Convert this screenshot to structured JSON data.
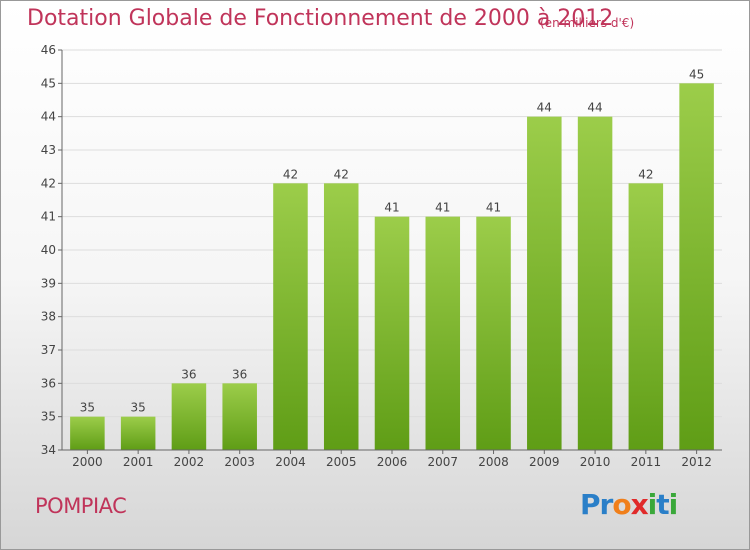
{
  "header": {
    "title": "Dotation Globale de Fonctionnement de 2000 à 2012",
    "unit": "(en milliers d'€)"
  },
  "footer": {
    "city": "POMPIAC",
    "brand_letters": [
      {
        "ch": "P",
        "color": "#2a7fc8"
      },
      {
        "ch": "r",
        "color": "#2a7fc8"
      },
      {
        "ch": "o",
        "color": "#f07f1a"
      },
      {
        "ch": "x",
        "color": "#e02a2a"
      },
      {
        "ch": "i",
        "color": "#3aa83a"
      },
      {
        "ch": "t",
        "color": "#2a7fc8"
      },
      {
        "ch": "i",
        "color": "#3aa83a"
      }
    ]
  },
  "colors": {
    "title": "#c0345a",
    "bar_top": "#9ccd4a",
    "bar_bottom": "#5f9d16",
    "grid": "#dddddd",
    "axis": "#666666"
  },
  "chart_data": {
    "type": "bar",
    "categories": [
      "2000",
      "2001",
      "2002",
      "2003",
      "2004",
      "2005",
      "2006",
      "2007",
      "2008",
      "2009",
      "2010",
      "2011",
      "2012"
    ],
    "values": [
      35,
      35,
      36,
      36,
      42,
      42,
      41,
      41,
      41,
      44,
      44,
      42,
      45
    ],
    "ylim": [
      34,
      46
    ],
    "yticks": [
      34,
      35,
      36,
      37,
      38,
      39,
      40,
      41,
      42,
      43,
      44,
      45,
      46
    ],
    "grid": true,
    "legend": "none"
  }
}
